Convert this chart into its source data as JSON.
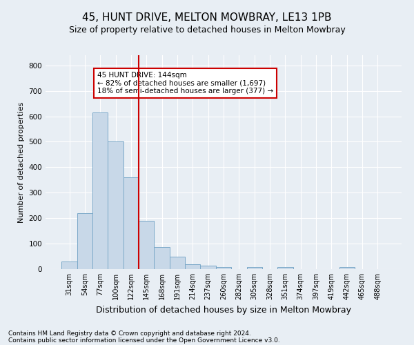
{
  "title": "45, HUNT DRIVE, MELTON MOWBRAY, LE13 1PB",
  "subtitle": "Size of property relative to detached houses in Melton Mowbray",
  "xlabel": "Distribution of detached houses by size in Melton Mowbray",
  "ylabel": "Number of detached properties",
  "categories": [
    "31sqm",
    "54sqm",
    "77sqm",
    "100sqm",
    "122sqm",
    "145sqm",
    "168sqm",
    "191sqm",
    "214sqm",
    "237sqm",
    "260sqm",
    "282sqm",
    "305sqm",
    "328sqm",
    "351sqm",
    "374sqm",
    "397sqm",
    "419sqm",
    "442sqm",
    "465sqm",
    "488sqm"
  ],
  "values": [
    30,
    220,
    615,
    500,
    360,
    190,
    88,
    50,
    18,
    13,
    8,
    0,
    7,
    0,
    7,
    0,
    0,
    0,
    7,
    0,
    0
  ],
  "bar_color": "#c8d8e8",
  "bar_edge_color": "#7aa8c8",
  "vline_x_index": 4.5,
  "vline_color": "#cc0000",
  "annotation_text": "45 HUNT DRIVE: 144sqm\n← 82% of detached houses are smaller (1,697)\n18% of semi-detached houses are larger (377) →",
  "annotation_box_color": "#ffffff",
  "annotation_box_edge_color": "#cc0000",
  "ylim": [
    0,
    840
  ],
  "yticks": [
    0,
    100,
    200,
    300,
    400,
    500,
    600,
    700,
    800
  ],
  "footnote1": "Contains HM Land Registry data © Crown copyright and database right 2024.",
  "footnote2": "Contains public sector information licensed under the Open Government Licence v3.0.",
  "background_color": "#e8eef4",
  "grid_color": "#ffffff",
  "title_fontsize": 11,
  "subtitle_fontsize": 9,
  "xlabel_fontsize": 9,
  "ylabel_fontsize": 8,
  "tick_fontsize": 7,
  "annotation_fontsize": 7.5,
  "footnote_fontsize": 6.5
}
